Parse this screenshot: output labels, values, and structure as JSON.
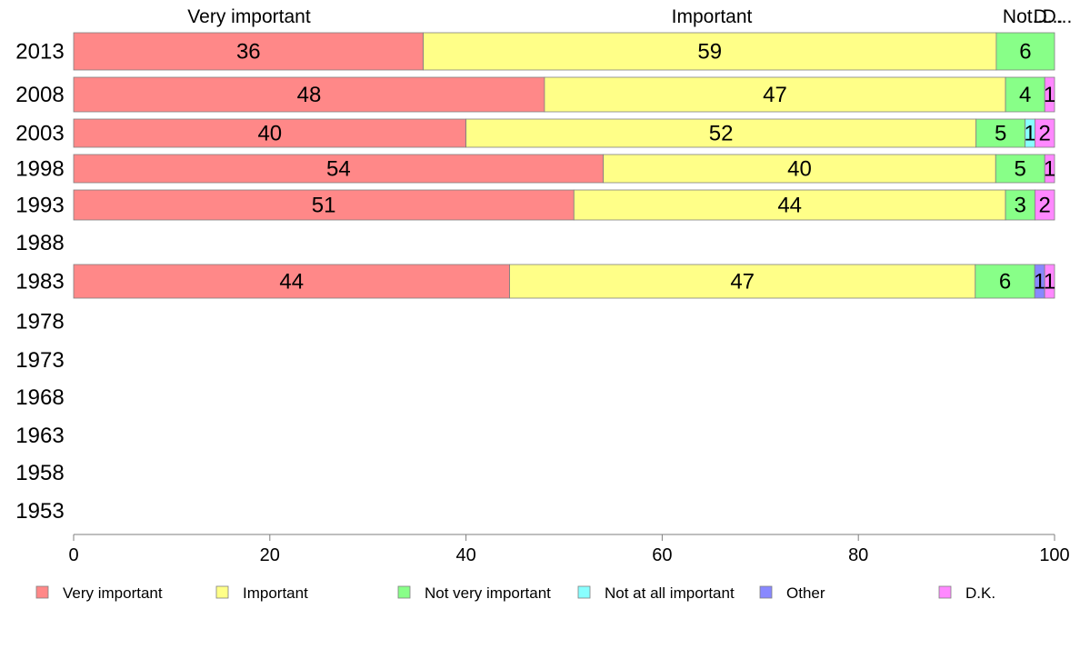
{
  "chart_data": {
    "type": "bar",
    "orientation": "horizontal",
    "stacked": true,
    "title": "",
    "xlabel": "",
    "ylabel": "",
    "xlim": [
      0,
      100
    ],
    "x_ticks": [
      0,
      20,
      40,
      60,
      80,
      100
    ],
    "grid": false,
    "legend_position": "bottom",
    "categories": [
      "2013",
      "2008",
      "2003",
      "1998",
      "1993",
      "1988",
      "1983",
      "1978",
      "1973",
      "1968",
      "1963",
      "1958",
      "1953"
    ],
    "series": [
      {
        "name": "Very important",
        "color": "#ff8888",
        "values": [
          36,
          48,
          40,
          54,
          51,
          null,
          44,
          null,
          null,
          null,
          null,
          null,
          null
        ]
      },
      {
        "name": "Important",
        "color": "#ffff88",
        "values": [
          59,
          47,
          52,
          40,
          44,
          null,
          47,
          null,
          null,
          null,
          null,
          null,
          null
        ]
      },
      {
        "name": "Not very important",
        "color": "#88ff88",
        "values": [
          6,
          4,
          5,
          5,
          3,
          null,
          6,
          null,
          null,
          null,
          null,
          null,
          null
        ]
      },
      {
        "name": "Not at all important",
        "color": "#88ffff",
        "values": [
          0,
          0,
          1,
          0,
          0,
          null,
          0,
          null,
          null,
          null,
          null,
          null,
          null
        ]
      },
      {
        "name": "Other",
        "color": "#8888ff",
        "values": [
          0,
          0,
          0,
          0,
          0,
          null,
          1,
          null,
          null,
          null,
          null,
          null,
          null
        ]
      },
      {
        "name": "D.K.",
        "color": "#ff88ff",
        "values": [
          0,
          1,
          2,
          1,
          2,
          null,
          1,
          null,
          null,
          null,
          null,
          null,
          null
        ]
      }
    ],
    "top_labels": [
      "Very important",
      "Important",
      "Not...",
      "D...",
      "D..."
    ]
  }
}
